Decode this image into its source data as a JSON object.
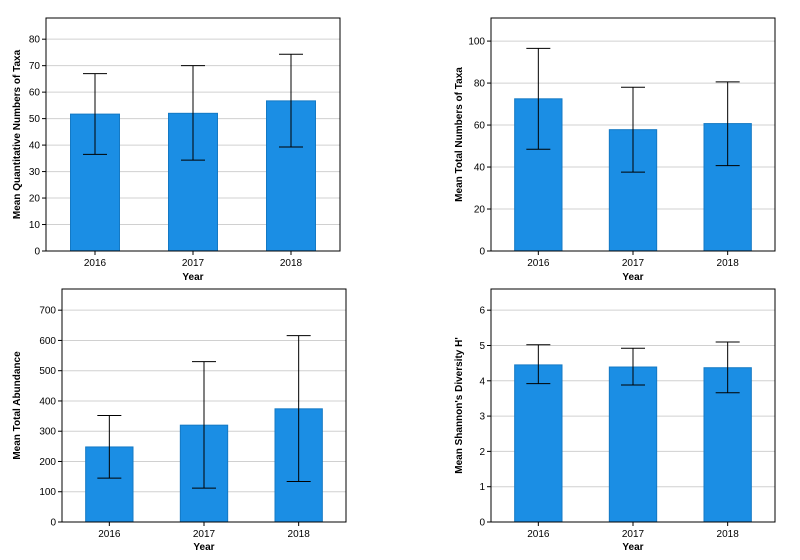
{
  "colors": {
    "bar": "#1b8ee4",
    "bar_edge": "#1479c4",
    "grid": "#d0d0d0",
    "frame": "#000000",
    "error": "#000000"
  },
  "chart_data": [
    {
      "type": "bar",
      "xlabel": "Year",
      "ylabel": "Mean Quantitative Numbers of Taxa",
      "categories": [
        "2016",
        "2017",
        "2018"
      ],
      "values": [
        51.7,
        52.0,
        56.7
      ],
      "error_low": [
        36.5,
        34.3,
        39.3
      ],
      "error_high": [
        67.0,
        70.0,
        74.3
      ],
      "ylim": [
        0,
        88
      ],
      "yticks": [
        0,
        10,
        20,
        30,
        40,
        50,
        60,
        70,
        80
      ],
      "grid": true
    },
    {
      "type": "bar",
      "xlabel": "Year",
      "ylabel": "Mean Total Numbers of Taxa",
      "categories": [
        "2016",
        "2017",
        "2018"
      ],
      "values": [
        72.5,
        57.8,
        60.7
      ],
      "error_low": [
        48.5,
        37.6,
        40.7
      ],
      "error_high": [
        96.5,
        78.0,
        80.6
      ],
      "ylim": [
        0,
        111
      ],
      "yticks": [
        0,
        20,
        40,
        60,
        80,
        100
      ],
      "grid": true
    },
    {
      "type": "bar",
      "xlabel": "Year",
      "ylabel": "Mean Total Abundance",
      "categories": [
        "2016",
        "2017",
        "2018"
      ],
      "values": [
        248,
        320,
        374
      ],
      "error_low": [
        145,
        112,
        134
      ],
      "error_high": [
        352,
        530,
        616
      ],
      "ylim": [
        0,
        770
      ],
      "yticks": [
        0,
        100,
        200,
        300,
        400,
        500,
        600,
        700
      ],
      "grid": true
    },
    {
      "type": "bar",
      "xlabel": "Year",
      "ylabel": "Mean Shannon's Diversity H'",
      "categories": [
        "2016",
        "2017",
        "2018"
      ],
      "values": [
        4.45,
        4.39,
        4.37
      ],
      "error_low": [
        3.92,
        3.88,
        3.66
      ],
      "error_high": [
        5.02,
        4.92,
        5.1
      ],
      "ylim": [
        0,
        6.6
      ],
      "yticks": [
        0,
        1,
        2,
        3,
        4,
        5,
        6
      ],
      "grid": true
    }
  ]
}
